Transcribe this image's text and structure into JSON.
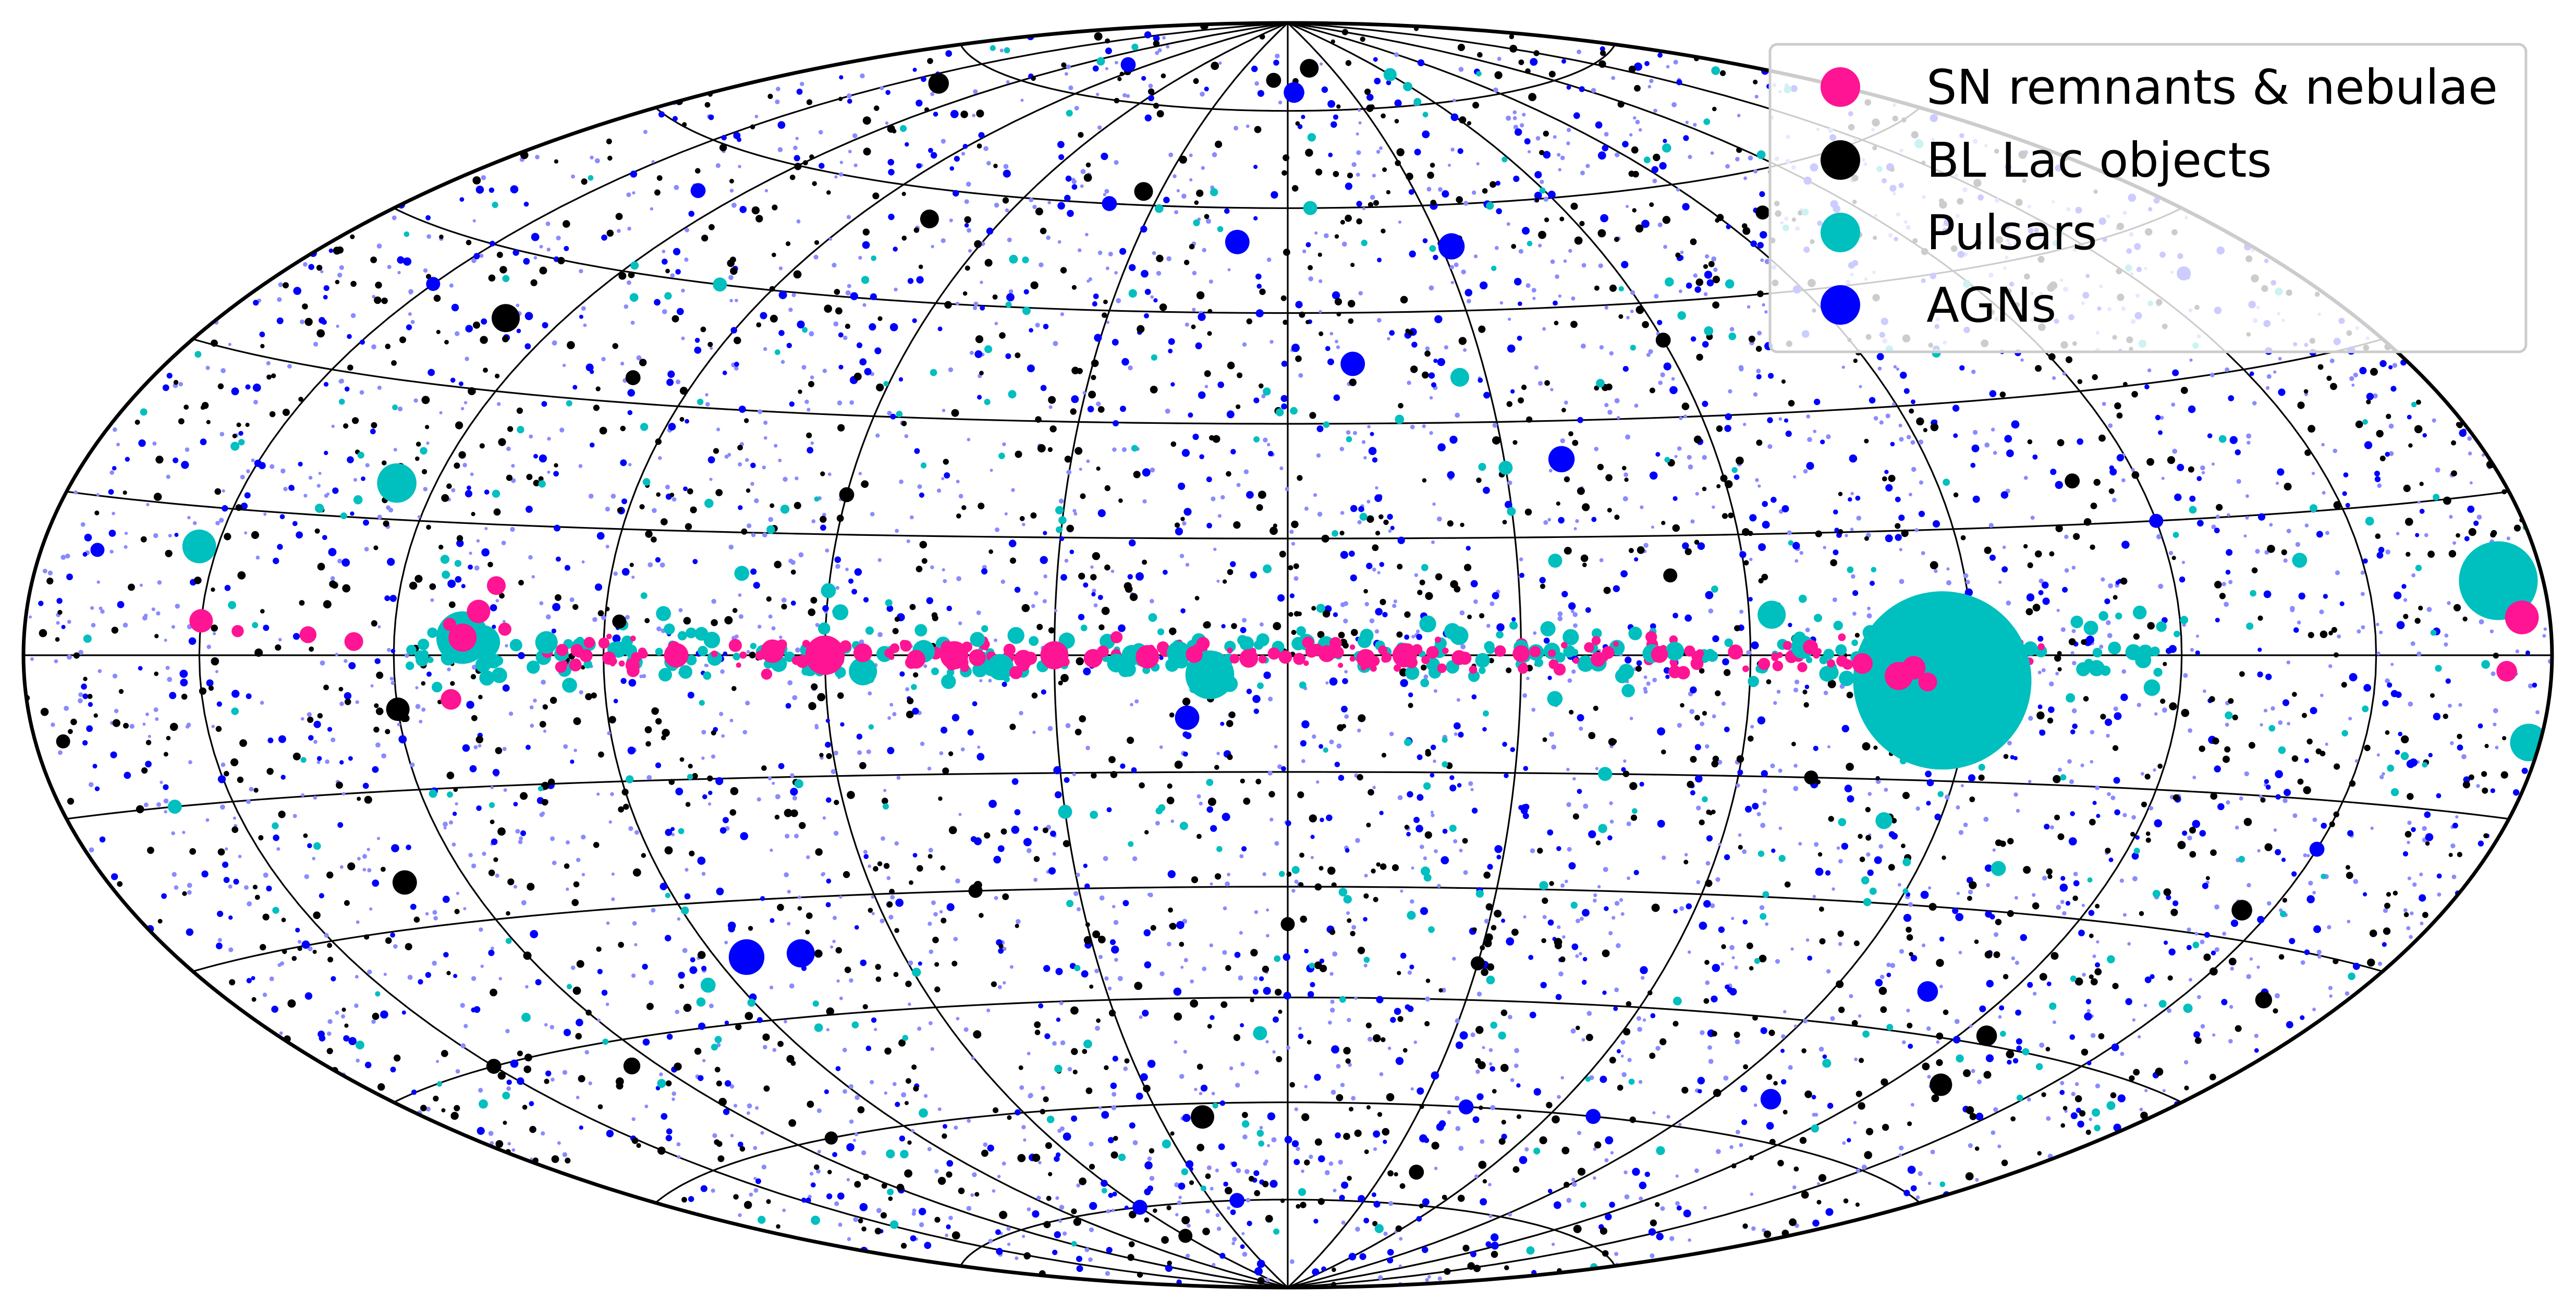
{
  "chart_data": {
    "type": "scatter",
    "projection": "aitoff",
    "coordinate_system": "galactic",
    "grid": true,
    "grid_longitudes_deg": [
      -150,
      -120,
      -90,
      -60,
      -30,
      0,
      30,
      60,
      90,
      120,
      150
    ],
    "grid_latitudes_deg": [
      -75,
      -60,
      -45,
      -30,
      -15,
      0,
      15,
      30,
      45,
      60,
      75
    ],
    "legend_position": "top-right",
    "colors": {
      "sn": "#ff1493",
      "bll": "#000000",
      "psr": "#00bfbf",
      "agn": "#0000ff",
      "agn_faint": "#8a8aff"
    },
    "series": [
      {
        "key": "sn",
        "name": "SN remnants & nebulae",
        "points": [
          {
            "lon": 110,
            "lat": 2,
            "s": 3.0
          },
          {
            "lon": 108,
            "lat": 5,
            "s": 2.5
          },
          {
            "lon": 106,
            "lat": 8,
            "s": 2.0
          },
          {
            "lon": 112,
            "lat": -5,
            "s": 2.2
          },
          {
            "lon": 126,
            "lat": 1.5,
            "s": 2.0
          },
          {
            "lon": 133,
            "lat": 2.2,
            "s": 1.8
          },
          {
            "lon": 80,
            "lat": 0,
            "s": 2.6
          },
          {
            "lon": 67,
            "lat": 0.5,
            "s": 2.5
          },
          {
            "lon": 60,
            "lat": 0,
            "s": 4.2
          },
          {
            "lon": 55,
            "lat": 0.3,
            "s": 2.0
          },
          {
            "lon": 48,
            "lat": -0.5,
            "s": 2.0
          },
          {
            "lon": 43,
            "lat": 0,
            "s": 3.0
          },
          {
            "lon": 40,
            "lat": -0.3,
            "s": 1.8
          },
          {
            "lon": 34,
            "lat": -0.5,
            "s": 2.0
          },
          {
            "lon": 30,
            "lat": 0,
            "s": 3.0
          },
          {
            "lon": 25,
            "lat": -0.4,
            "s": 2.0
          },
          {
            "lon": 18,
            "lat": -0.2,
            "s": 2.5
          },
          {
            "lon": 12,
            "lat": 0.1,
            "s": 1.8
          },
          {
            "lon": 5,
            "lat": -0.4,
            "s": 2.0
          },
          {
            "lon": -5,
            "lat": 0.2,
            "s": 1.8
          },
          {
            "lon": -10,
            "lat": -0.4,
            "s": 2.0
          },
          {
            "lon": -15,
            "lat": 0,
            "s": 2.6
          },
          {
            "lon": -22,
            "lat": -0.3,
            "s": 1.6
          },
          {
            "lon": -30,
            "lat": 0.2,
            "s": 1.8
          },
          {
            "lon": -40,
            "lat": -0.5,
            "s": 1.6
          },
          {
            "lon": -48,
            "lat": 0.1,
            "s": 1.8
          },
          {
            "lon": -58,
            "lat": 0.4,
            "s": 1.6
          },
          {
            "lon": -75,
            "lat": -1.0,
            "s": 2.2
          },
          {
            "lon": -80,
            "lat": -2.5,
            "s": 3.0
          },
          {
            "lon": -82,
            "lat": -1.5,
            "s": 2.5
          },
          {
            "lon": -84,
            "lat": -3.2,
            "s": 2.0
          },
          {
            "lon": -68,
            "lat": 1.0,
            "s": 1.6
          },
          {
            "lon": 112,
            "lat": 3.5,
            "s": 1.4
          },
          {
            "lon": 104,
            "lat": 3.0,
            "s": 1.4
          },
          {
            "lon": 86,
            "lat": -1.2,
            "s": 1.5
          },
          {
            "lon": 72,
            "lat": 1.2,
            "s": 1.4
          },
          {
            "lon": 184.5,
            "lat": -5.8,
            "s": 3.4
          },
          {
            "lon": -175,
            "lat": 3.5,
            "s": 3.6
          },
          {
            "lon": -172,
            "lat": -1.5,
            "s": 2.2
          },
          {
            "lon": 150,
            "lat": 3.5,
            "s": 2.5
          },
          {
            "lon": 35,
            "lat": -2.2,
            "s": 1.4
          },
          {
            "lon": 22,
            "lat": 2.3,
            "s": 1.3
          },
          {
            "lon": -35,
            "lat": -1.8,
            "s": 1.3
          },
          {
            "lon": 144,
            "lat": 2.5,
            "s": 1.3
          },
          {
            "lon": 92,
            "lat": 1.5,
            "s": 1.2
          }
        ]
      },
      {
        "key": "bll",
        "name": "BL Lac objects",
        "points": [
          {
            "lon": 130,
            "lat": 38,
            "s": 3.0
          },
          {
            "lon": 140,
            "lat": 72,
            "s": 2.2
          },
          {
            "lon": 75,
            "lat": 56,
            "s": 2.0
          },
          {
            "lon": 34,
            "lat": 62,
            "s": 2.0
          },
          {
            "lon": 120,
            "lat": -6,
            "s": 2.5
          },
          {
            "lon": 130,
            "lat": -25,
            "s": 2.6
          },
          {
            "lon": 20,
            "lat": -62,
            "s": 2.5
          },
          {
            "lon": 125,
            "lat": -48,
            "s": 1.8
          },
          {
            "lon": -145,
            "lat": -27,
            "s": 2.2
          },
          {
            "lon": -125,
            "lat": -44,
            "s": 2.2
          },
          {
            "lon": -130,
            "lat": -50,
            "s": 2.4
          },
          {
            "lon": 100,
            "lat": 33,
            "s": 1.6
          },
          {
            "lon": 60,
            "lat": 20,
            "s": 1.6
          },
          {
            "lon": -60,
            "lat": 40,
            "s": 1.6
          },
          {
            "lon": -100,
            "lat": 55,
            "s": 1.5
          },
          {
            "lon": 8,
            "lat": 80,
            "s": 1.6
          },
          {
            "lon": -15,
            "lat": 82,
            "s": 2.0
          },
          {
            "lon": -40,
            "lat": -70,
            "s": 1.6
          },
          {
            "lon": 150,
            "lat": -45,
            "s": 1.6
          },
          {
            "lon": 88,
            "lat": 4,
            "s": 1.5
          },
          {
            "lon": -110,
            "lat": 20,
            "s": 1.6
          },
          {
            "lon": -165,
            "lat": -35,
            "s": 1.8
          },
          {
            "lon": 175,
            "lat": -8,
            "s": 1.5
          },
          {
            "lon": 45,
            "lat": -30,
            "s": 1.5
          },
          {
            "lon": -30,
            "lat": -40,
            "s": 1.5
          },
          {
            "lon": 60,
            "lat": -80,
            "s": 1.5
          },
          {
            "lon": -70,
            "lat": -15,
            "s": 1.5
          },
          {
            "lon": 0,
            "lat": -35,
            "s": 1.5
          },
          {
            "lon": -50,
            "lat": 10,
            "s": 1.5
          },
          {
            "lon": 110,
            "lat": -60,
            "s": 1.4
          }
        ]
      },
      {
        "key": "psr",
        "name": "Pulsars",
        "points": [
          {
            "lon": -86,
            "lat": -3.0,
            "s": 19.0
          },
          {
            "lon": -172,
            "lat": 7.0,
            "s": 8.4
          },
          {
            "lon": -178,
            "lat": -8.0,
            "s": 4.0
          },
          {
            "lon": 110,
            "lat": 2.0,
            "s": 5.6
          },
          {
            "lon": 107,
            "lat": 1.5,
            "s": 3.6
          },
          {
            "lon": 126,
            "lat": 19,
            "s": 4.2
          },
          {
            "lon": 153,
            "lat": 11,
            "s": 3.6
          },
          {
            "lon": 10,
            "lat": -2.5,
            "s": 5.2
          },
          {
            "lon": 37,
            "lat": -1.5,
            "s": 2.8
          },
          {
            "lon": 47,
            "lat": 0.5,
            "s": 2.4
          },
          {
            "lon": 55,
            "lat": -2,
            "s": 3.0
          },
          {
            "lon": 98,
            "lat": 1.5,
            "s": 2.4
          },
          {
            "lon": -47,
            "lat": 0.2,
            "s": 2.0
          },
          {
            "lon": -50,
            "lat": 0.5,
            "s": 2.0
          },
          {
            "lon": -63,
            "lat": 5,
            "s": 3.0
          },
          {
            "lon": -67,
            "lat": 1,
            "s": 2.5
          },
          {
            "lon": -22,
            "lat": 2.5,
            "s": 2.0
          },
          {
            "lon": 14,
            "lat": 0.3,
            "s": 2.5
          },
          {
            "lon": 20,
            "lat": 0,
            "s": 2.2
          },
          {
            "lon": 22,
            "lat": -1.0,
            "s": 2.0
          },
          {
            "lon": 35,
            "lat": 2.5,
            "s": 1.8
          },
          {
            "lon": 40,
            "lat": 2.0,
            "s": 1.6
          },
          {
            "lon": -40,
            "lat": -1,
            "s": 1.8
          },
          {
            "lon": -30,
            "lat": 1,
            "s": 1.6
          },
          {
            "lon": -18,
            "lat": 4,
            "s": 1.8
          },
          {
            "lon": 60,
            "lat": 8,
            "s": 1.6
          },
          {
            "lon": -35,
            "lat": 12,
            "s": 1.5
          },
          {
            "lon": -26,
            "lat": 36,
            "s": 2.0
          },
          {
            "lon": -30,
            "lat": 24,
            "s": 1.5
          },
          {
            "lon": 30,
            "lat": -20,
            "s": 1.5
          },
          {
            "lon": -42,
            "lat": -15,
            "s": 1.5
          },
          {
            "lon": -82,
            "lat": -20,
            "s": 1.8
          },
          {
            "lon": 95,
            "lat": -40,
            "s": 1.6
          },
          {
            "lon": 100,
            "lat": 45,
            "s": 1.5
          },
          {
            "lon": 160,
            "lat": -15,
            "s": 1.5
          },
          {
            "lon": -140,
            "lat": 10,
            "s": 1.6
          },
          {
            "lon": -102,
            "lat": -25,
            "s": 1.6
          },
          {
            "lon": 72,
            "lat": 10,
            "s": 1.6
          },
          {
            "lon": 82,
            "lat": 5,
            "s": 1.6
          },
          {
            "lon": 5,
            "lat": -50,
            "s": 1.5
          },
          {
            "lon": -5,
            "lat": 60,
            "s": 1.5
          },
          {
            "lon": -60,
            "lat": 80,
            "s": 1.4
          }
        ]
      },
      {
        "key": "agn",
        "name": "AGNs",
        "points": [
          {
            "lon": 85,
            "lat": -37,
            "s": 3.8
          },
          {
            "lon": 76,
            "lat": -37,
            "s": 3.0
          },
          {
            "lon": -32,
            "lat": 54,
            "s": 2.8
          },
          {
            "lon": -38,
            "lat": 25,
            "s": 2.8
          },
          {
            "lon": -10,
            "lat": 38,
            "s": 2.6
          },
          {
            "lon": 13,
            "lat": -8,
            "s": 2.6
          },
          {
            "lon": -3,
            "lat": 78,
            "s": 2.2
          },
          {
            "lon": -102,
            "lat": -55,
            "s": 2.2
          },
          {
            "lon": -106,
            "lat": -40,
            "s": 2.2
          },
          {
            "lon": 10,
            "lat": 55,
            "s": 2.6
          },
          {
            "lon": -70,
            "lat": -60,
            "s": 1.6
          },
          {
            "lon": 100,
            "lat": 80,
            "s": 1.6
          },
          {
            "lon": 130,
            "lat": 55,
            "s": 1.6
          },
          {
            "lon": 150,
            "lat": 40,
            "s": 1.5
          },
          {
            "lon": -150,
            "lat": -20,
            "s": 1.6
          },
          {
            "lon": -160,
            "lat": 40,
            "s": 1.5
          },
          {
            "lon": 170,
            "lat": 10,
            "s": 1.5
          },
          {
            "lon": 40,
            "lat": 60,
            "s": 1.6
          },
          {
            "lon": -40,
            "lat": -60,
            "s": 1.6
          },
          {
            "lon": 20,
            "lat": -75,
            "s": 1.6
          },
          {
            "lon": -120,
            "lat": 15,
            "s": 1.5
          },
          {
            "lon": 60,
            "lat": -75,
            "s": 1.6
          }
        ]
      }
    ]
  },
  "legend": {
    "items": [
      {
        "key": "sn",
        "label": "SN remnants & nebulae"
      },
      {
        "key": "bll",
        "label": "BL Lac objects"
      },
      {
        "key": "psr",
        "label": "Pulsars"
      },
      {
        "key": "agn",
        "label": "AGNs"
      }
    ]
  }
}
